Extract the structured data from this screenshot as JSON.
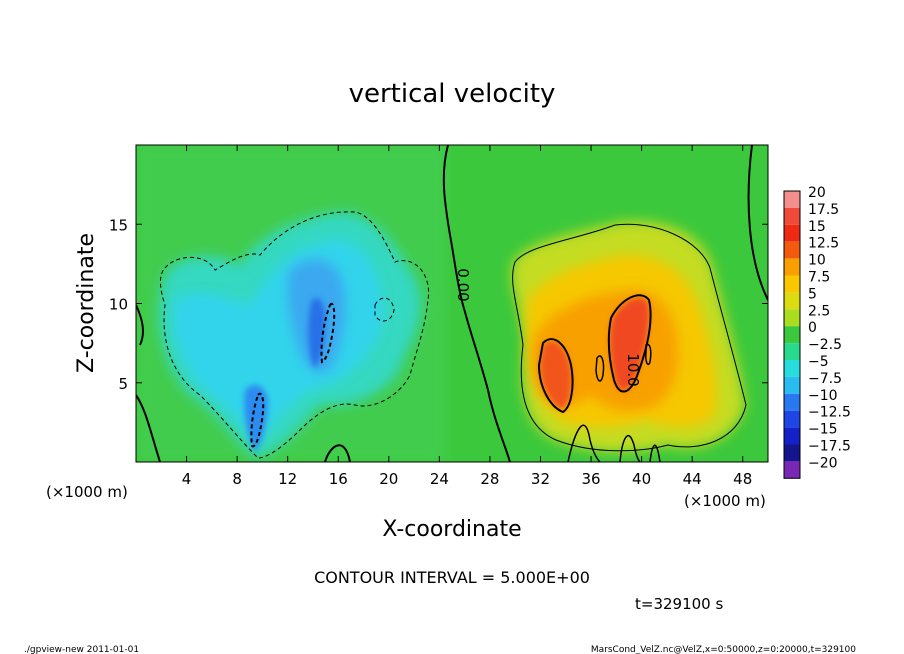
{
  "chart_data": {
    "type": "heatmap",
    "title": "vertical velocity",
    "xlabel": "X-coordinate",
    "ylabel": "Z-coordinate",
    "x_unit_label": "(×1000 m)",
    "y_unit_label": "(×1000 m)",
    "xlim": [
      0,
      50
    ],
    "ylim": [
      0,
      20
    ],
    "x_ticks": [
      "4",
      "8",
      "12",
      "16",
      "20",
      "24",
      "28",
      "32",
      "36",
      "40",
      "44",
      "48"
    ],
    "x_tick_values": [
      4,
      8,
      12,
      16,
      20,
      24,
      28,
      32,
      36,
      40,
      44,
      48
    ],
    "y_ticks": [
      "5",
      "10",
      "15"
    ],
    "y_tick_values": [
      5,
      10,
      15
    ],
    "colorbar": {
      "labels": [
        "20",
        "17.5",
        "15",
        "12.5",
        "10",
        "7.5",
        "5",
        "2.5",
        "0",
        "−2.5",
        "−5",
        "−7.5",
        "−10",
        "−12.5",
        "−15",
        "−17.5",
        "−20"
      ],
      "colors": [
        "#f58e8e",
        "#f04a3a",
        "#ee2a14",
        "#f25a10",
        "#f7a000",
        "#f9c800",
        "#dcdc10",
        "#aadc20",
        "#3cc83c",
        "#28d88c",
        "#28dcdc",
        "#28bcf0",
        "#2878f0",
        "#1e46e6",
        "#1420c8",
        "#14148c",
        "#7828b4"
      ]
    },
    "contour_labels": [
      "0.00",
      "10.0"
    ],
    "contour_interval_text": "CONTOUR INTERVAL = 5.000E+00",
    "time_text": "t=329100 s"
  },
  "footer": {
    "left": "./gpview-new  2011-01-01",
    "right": "MarsCond_VelZ.nc@VelZ,x=0:50000,z=0:20000,t=329100"
  },
  "colors": {
    "background_field": "#32c832",
    "downdraft_light": "#32dcdc",
    "updraft": "#f9a000"
  }
}
